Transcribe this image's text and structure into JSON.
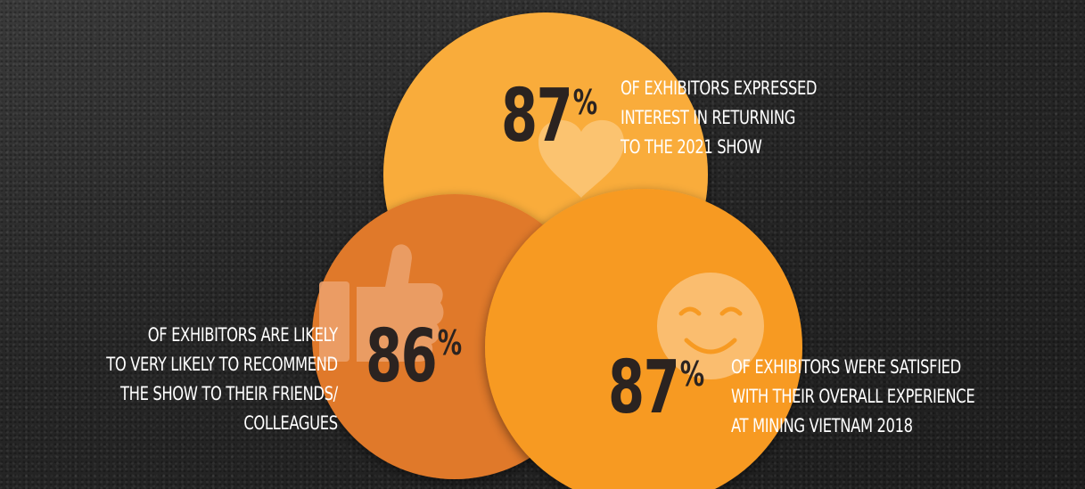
{
  "background": {
    "color": "#262626"
  },
  "colors": {
    "top_circle": "#F9AC3A",
    "left_circle": "#E07929",
    "right_circle": "#F79A22",
    "numbers": "#2B2320",
    "text": "#FFFFFF"
  },
  "stats": {
    "returning": {
      "number": "87",
      "percent": "%",
      "lines": [
        "OF EXHIBITORS EXPRESSED",
        "INTEREST IN RETURNING",
        "TO THE 2021 SHOW"
      ],
      "icon": "heart-icon"
    },
    "recommend": {
      "number": "86",
      "percent": "%",
      "lines": [
        "OF EXHIBITORS ARE LIKELY",
        "TO VERY LIKELY TO RECOMMEND",
        "THE SHOW TO THEIR FRIENDS/",
        "COLLEAGUES"
      ],
      "icon": "thumbs-up-icon"
    },
    "satisfied": {
      "number": "87",
      "percent": "%",
      "lines": [
        "OF EXHIBITORS WERE SATISFIED",
        "WITH THEIR OVERALL EXPERIENCE",
        "AT MINING VIETNAM 2018"
      ],
      "icon": "smiley-face-icon"
    }
  }
}
